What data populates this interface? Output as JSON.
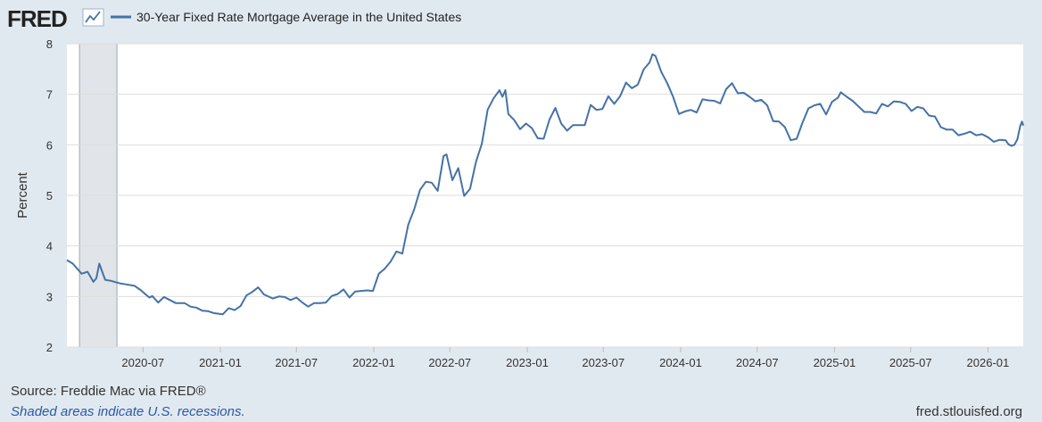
{
  "brand": {
    "name": "FRED",
    "logo_icon": "fred-chart-icon"
  },
  "legend": {
    "label": "30-Year Fixed Rate Mortgage Average in the United States"
  },
  "footer": {
    "source": "Source: Freddie Mac via FRED®",
    "note": "Shaded areas indicate U.S. recessions.",
    "site": "fred.stlouisfed.org"
  },
  "colors": {
    "line": "#4572a7",
    "plot_bg": "#ffffff",
    "page_bg": "#e1e9f0",
    "recession": "#e1e5ea",
    "grid": "#dddddd"
  },
  "chart_data": {
    "type": "line",
    "ylabel": "Percent",
    "ylim": [
      2,
      8
    ],
    "yticks": [
      "2",
      "3",
      "4",
      "5",
      "6",
      "7",
      "8"
    ],
    "xlim": [
      "2020-01-02",
      "2026-03-26"
    ],
    "xticks": [
      "2020-07",
      "2021-01",
      "2021-07",
      "2022-01",
      "2022-07",
      "2023-01",
      "2023-07",
      "2024-01",
      "2024-07",
      "2025-01",
      "2025-07",
      "2026-01"
    ],
    "grid": true,
    "legend_position": "top-left",
    "recessions": [
      {
        "start": "2020-02-01",
        "end": "2020-04-30"
      }
    ],
    "series": [
      {
        "name": "30-Year Fixed Rate Mortgage Average in the United States",
        "points": [
          [
            "2020-01-02",
            3.72
          ],
          [
            "2020-01-16",
            3.65
          ],
          [
            "2020-02-06",
            3.45
          ],
          [
            "2020-02-20",
            3.49
          ],
          [
            "2020-03-05",
            3.29
          ],
          [
            "2020-03-12",
            3.36
          ],
          [
            "2020-03-19",
            3.65
          ],
          [
            "2020-04-02",
            3.33
          ],
          [
            "2020-04-16",
            3.31
          ],
          [
            "2020-05-07",
            3.26
          ],
          [
            "2020-05-21",
            3.24
          ],
          [
            "2020-06-11",
            3.21
          ],
          [
            "2020-06-25",
            3.13
          ],
          [
            "2020-07-16",
            2.98
          ],
          [
            "2020-07-23",
            3.01
          ],
          [
            "2020-08-06",
            2.88
          ],
          [
            "2020-08-20",
            2.99
          ],
          [
            "2020-09-03",
            2.93
          ],
          [
            "2020-09-17",
            2.87
          ],
          [
            "2020-10-08",
            2.87
          ],
          [
            "2020-10-22",
            2.8
          ],
          [
            "2020-11-05",
            2.78
          ],
          [
            "2020-11-19",
            2.72
          ],
          [
            "2020-12-03",
            2.71
          ],
          [
            "2020-12-17",
            2.67
          ],
          [
            "2021-01-07",
            2.65
          ],
          [
            "2021-01-21",
            2.77
          ],
          [
            "2021-02-04",
            2.73
          ],
          [
            "2021-02-18",
            2.81
          ],
          [
            "2021-03-04",
            3.02
          ],
          [
            "2021-03-18",
            3.09
          ],
          [
            "2021-04-01",
            3.18
          ],
          [
            "2021-04-15",
            3.04
          ],
          [
            "2021-05-06",
            2.96
          ],
          [
            "2021-05-20",
            3.0
          ],
          [
            "2021-06-03",
            2.99
          ],
          [
            "2021-06-17",
            2.93
          ],
          [
            "2021-07-01",
            2.98
          ],
          [
            "2021-07-15",
            2.88
          ],
          [
            "2021-07-29",
            2.8
          ],
          [
            "2021-08-12",
            2.87
          ],
          [
            "2021-08-26",
            2.87
          ],
          [
            "2021-09-09",
            2.88
          ],
          [
            "2021-09-23",
            3.01
          ],
          [
            "2021-10-07",
            3.05
          ],
          [
            "2021-10-21",
            3.14
          ],
          [
            "2021-11-04",
            2.98
          ],
          [
            "2021-11-18",
            3.1
          ],
          [
            "2021-12-02",
            3.11
          ],
          [
            "2021-12-16",
            3.12
          ],
          [
            "2021-12-30",
            3.11
          ],
          [
            "2022-01-13",
            3.45
          ],
          [
            "2022-01-27",
            3.55
          ],
          [
            "2022-02-10",
            3.69
          ],
          [
            "2022-02-24",
            3.89
          ],
          [
            "2022-03-10",
            3.85
          ],
          [
            "2022-03-24",
            4.42
          ],
          [
            "2022-04-07",
            4.72
          ],
          [
            "2022-04-21",
            5.11
          ],
          [
            "2022-05-05",
            5.27
          ],
          [
            "2022-05-19",
            5.25
          ],
          [
            "2022-06-02",
            5.09
          ],
          [
            "2022-06-16",
            5.78
          ],
          [
            "2022-06-23",
            5.81
          ],
          [
            "2022-07-07",
            5.3
          ],
          [
            "2022-07-21",
            5.54
          ],
          [
            "2022-08-04",
            4.99
          ],
          [
            "2022-08-18",
            5.13
          ],
          [
            "2022-09-01",
            5.66
          ],
          [
            "2022-09-15",
            6.02
          ],
          [
            "2022-09-29",
            6.7
          ],
          [
            "2022-10-13",
            6.92
          ],
          [
            "2022-10-27",
            7.08
          ],
          [
            "2022-11-03",
            6.95
          ],
          [
            "2022-11-10",
            7.08
          ],
          [
            "2022-11-17",
            6.61
          ],
          [
            "2022-12-01",
            6.49
          ],
          [
            "2022-12-15",
            6.31
          ],
          [
            "2022-12-29",
            6.42
          ],
          [
            "2023-01-12",
            6.33
          ],
          [
            "2023-01-26",
            6.13
          ],
          [
            "2023-02-09",
            6.12
          ],
          [
            "2023-02-23",
            6.5
          ],
          [
            "2023-03-09",
            6.73
          ],
          [
            "2023-03-23",
            6.42
          ],
          [
            "2023-04-06",
            6.28
          ],
          [
            "2023-04-20",
            6.39
          ],
          [
            "2023-05-04",
            6.39
          ],
          [
            "2023-05-18",
            6.39
          ],
          [
            "2023-06-01",
            6.79
          ],
          [
            "2023-06-15",
            6.69
          ],
          [
            "2023-06-29",
            6.71
          ],
          [
            "2023-07-13",
            6.96
          ],
          [
            "2023-07-27",
            6.81
          ],
          [
            "2023-08-10",
            6.96
          ],
          [
            "2023-08-24",
            7.23
          ],
          [
            "2023-09-07",
            7.12
          ],
          [
            "2023-09-21",
            7.19
          ],
          [
            "2023-10-05",
            7.49
          ],
          [
            "2023-10-19",
            7.63
          ],
          [
            "2023-10-26",
            7.79
          ],
          [
            "2023-11-02",
            7.76
          ],
          [
            "2023-11-16",
            7.44
          ],
          [
            "2023-11-30",
            7.22
          ],
          [
            "2023-12-14",
            6.95
          ],
          [
            "2023-12-28",
            6.61
          ],
          [
            "2024-01-11",
            6.66
          ],
          [
            "2024-01-25",
            6.69
          ],
          [
            "2024-02-08",
            6.64
          ],
          [
            "2024-02-22",
            6.9
          ],
          [
            "2024-03-07",
            6.88
          ],
          [
            "2024-03-21",
            6.87
          ],
          [
            "2024-04-04",
            6.82
          ],
          [
            "2024-04-18",
            7.1
          ],
          [
            "2024-05-02",
            7.22
          ],
          [
            "2024-05-16",
            7.02
          ],
          [
            "2024-05-30",
            7.03
          ],
          [
            "2024-06-13",
            6.95
          ],
          [
            "2024-06-27",
            6.86
          ],
          [
            "2024-07-11",
            6.89
          ],
          [
            "2024-07-25",
            6.78
          ],
          [
            "2024-08-08",
            6.47
          ],
          [
            "2024-08-22",
            6.46
          ],
          [
            "2024-09-05",
            6.35
          ],
          [
            "2024-09-19",
            6.09
          ],
          [
            "2024-10-03",
            6.12
          ],
          [
            "2024-10-17",
            6.44
          ],
          [
            "2024-10-31",
            6.72
          ],
          [
            "2024-11-14",
            6.78
          ],
          [
            "2024-11-28",
            6.81
          ],
          [
            "2024-12-12",
            6.6
          ],
          [
            "2024-12-26",
            6.85
          ],
          [
            "2025-01-09",
            6.93
          ],
          [
            "2025-01-16",
            7.04
          ],
          [
            "2025-01-30",
            6.95
          ],
          [
            "2025-02-13",
            6.87
          ],
          [
            "2025-02-27",
            6.76
          ],
          [
            "2025-03-13",
            6.65
          ],
          [
            "2025-03-27",
            6.65
          ],
          [
            "2025-04-10",
            6.62
          ],
          [
            "2025-04-24",
            6.81
          ],
          [
            "2025-05-08",
            6.76
          ],
          [
            "2025-05-22",
            6.86
          ],
          [
            "2025-06-05",
            6.85
          ],
          [
            "2025-06-19",
            6.81
          ],
          [
            "2025-07-03",
            6.67
          ],
          [
            "2025-07-17",
            6.75
          ],
          [
            "2025-07-31",
            6.72
          ],
          [
            "2025-08-14",
            6.58
          ],
          [
            "2025-08-28",
            6.56
          ],
          [
            "2025-09-11",
            6.35
          ],
          [
            "2025-09-25",
            6.3
          ],
          [
            "2025-10-09",
            6.3
          ],
          [
            "2025-10-23",
            6.19
          ],
          [
            "2025-11-06",
            6.22
          ],
          [
            "2025-11-20",
            6.26
          ],
          [
            "2025-12-04",
            6.19
          ],
          [
            "2025-12-18",
            6.21
          ],
          [
            "2026-01-01",
            6.15
          ],
          [
            "2026-01-15",
            6.06
          ],
          [
            "2026-01-29",
            6.1
          ],
          [
            "2026-02-12",
            6.09
          ],
          [
            "2026-02-19",
            6.01
          ],
          [
            "2026-02-26",
            5.98
          ],
          [
            "2026-03-05",
            6.0
          ],
          [
            "2026-03-12",
            6.11
          ],
          [
            "2026-03-19",
            6.38
          ],
          [
            "2026-03-23",
            6.46
          ],
          [
            "2026-03-26",
            6.38
          ]
        ]
      }
    ]
  }
}
